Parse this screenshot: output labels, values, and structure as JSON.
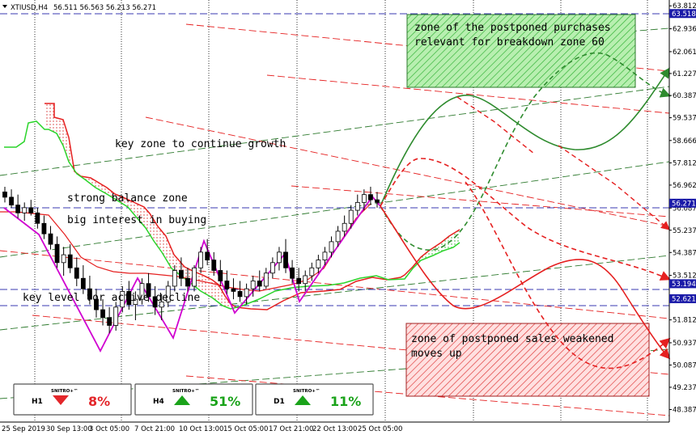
{
  "header": {
    "symbol": "XTIUSD,H4",
    "ohlc": "56.511 56.563 56.213 56.271"
  },
  "chart_data": {
    "type": "candlestick",
    "ylim": [
      48.0,
      63.85
    ],
    "price_ticks": [
      63.812,
      62.936,
      62.061,
      61.227,
      60.387,
      59.537,
      58.666,
      57.812,
      56.962,
      56.087,
      55.237,
      54.387,
      53.512,
      52.662,
      51.812,
      50.937,
      50.087,
      49.237,
      48.387
    ],
    "x_labels": [
      "25 Sep 2019",
      "30 Sep 13:00",
      "3 Oct 05:00",
      "7 Oct 21:00",
      "10 Oct 13:00",
      "15 Oct 05:00",
      "17 Oct 21:00",
      "22 Oct 13:00",
      "25 Oct 05:00"
    ],
    "price_tags": [
      {
        "value": 63.518,
        "label": "63.518",
        "color": "#1a1aa8"
      },
      {
        "value": 56.271,
        "label": "56.271",
        "color": "#1a1aa8"
      },
      {
        "value": 53.194,
        "label": "53.194",
        "color": "#1a1aa8"
      },
      {
        "value": 52.621,
        "label": "52.621",
        "color": "#1a1aa8"
      }
    ],
    "candles": [
      [
        56.7,
        56.9,
        56.3,
        56.5
      ],
      [
        56.5,
        56.8,
        56.1,
        56.2
      ],
      [
        56.2,
        56.6,
        55.7,
        55.9
      ],
      [
        55.9,
        56.3,
        55.6,
        56.1
      ],
      [
        56.1,
        56.4,
        55.8,
        55.9
      ],
      [
        55.9,
        56.1,
        55.3,
        55.5
      ],
      [
        55.5,
        55.8,
        54.9,
        55.1
      ],
      [
        55.1,
        55.4,
        54.5,
        54.7
      ],
      [
        54.7,
        55.0,
        53.8,
        54.0
      ],
      [
        54.0,
        54.6,
        53.5,
        54.3
      ],
      [
        54.3,
        54.7,
        53.6,
        53.8
      ],
      [
        53.8,
        54.2,
        53.1,
        53.4
      ],
      [
        53.4,
        53.9,
        52.8,
        53.0
      ],
      [
        53.0,
        53.5,
        52.4,
        52.6
      ],
      [
        52.6,
        53.0,
        51.9,
        52.2
      ],
      [
        52.2,
        52.6,
        51.6,
        51.9
      ],
      [
        51.9,
        52.3,
        51.3,
        51.6
      ],
      [
        51.6,
        52.5,
        51.4,
        52.3
      ],
      [
        52.3,
        53.1,
        52.1,
        52.9
      ],
      [
        52.9,
        53.3,
        52.2,
        52.4
      ],
      [
        52.4,
        52.9,
        51.8,
        52.6
      ],
      [
        52.6,
        53.4,
        52.4,
        53.2
      ],
      [
        53.2,
        53.6,
        52.5,
        52.7
      ],
      [
        52.7,
        53.1,
        52.0,
        52.3
      ],
      [
        52.3,
        52.8,
        51.8,
        52.5
      ],
      [
        52.5,
        53.3,
        52.3,
        53.1
      ],
      [
        53.1,
        53.9,
        52.9,
        53.7
      ],
      [
        53.7,
        54.2,
        53.1,
        53.4
      ],
      [
        53.4,
        53.8,
        52.9,
        53.1
      ],
      [
        53.1,
        53.9,
        52.9,
        53.8
      ],
      [
        53.8,
        54.6,
        53.6,
        54.4
      ],
      [
        54.4,
        54.9,
        53.9,
        54.1
      ],
      [
        54.1,
        54.4,
        53.5,
        53.7
      ],
      [
        53.7,
        54.1,
        53.1,
        53.3
      ],
      [
        53.3,
        53.7,
        52.8,
        53.0
      ],
      [
        53.0,
        53.4,
        52.6,
        52.9
      ],
      [
        52.9,
        53.3,
        52.5,
        52.7
      ],
      [
        52.7,
        53.2,
        52.4,
        53.0
      ],
      [
        53.0,
        53.5,
        52.7,
        53.3
      ],
      [
        53.3,
        53.7,
        52.9,
        53.1
      ],
      [
        53.1,
        53.8,
        53.0,
        53.6
      ],
      [
        53.6,
        54.2,
        53.4,
        54.0
      ],
      [
        54.0,
        54.6,
        53.7,
        54.4
      ],
      [
        54.4,
        54.9,
        53.6,
        53.8
      ],
      [
        53.8,
        54.1,
        53.2,
        53.4
      ],
      [
        53.4,
        53.8,
        52.9,
        53.2
      ],
      [
        53.2,
        53.7,
        52.9,
        53.5
      ],
      [
        53.5,
        54.0,
        53.3,
        53.8
      ],
      [
        53.8,
        54.3,
        53.6,
        54.1
      ],
      [
        54.1,
        54.6,
        53.9,
        54.4
      ],
      [
        54.4,
        55.0,
        54.2,
        54.8
      ],
      [
        54.8,
        55.4,
        54.6,
        55.2
      ],
      [
        55.2,
        55.8,
        55.0,
        55.5
      ],
      [
        55.5,
        56.2,
        55.3,
        56.0
      ],
      [
        56.0,
        56.6,
        55.8,
        56.3
      ],
      [
        56.3,
        56.8,
        56.0,
        56.6
      ],
      [
        56.6,
        56.9,
        56.2,
        56.4
      ],
      [
        56.4,
        56.7,
        56.1,
        56.3
      ]
    ]
  },
  "annotations": {
    "key_growth": "key zone to continue growth",
    "balance": "strong balance zone",
    "interest": "big interest in buying",
    "decline": "key level for active decline",
    "buy_zone_1": "zone of the postponed purchases",
    "buy_zone_2": "relevant for breakdown zone 60",
    "sell_zone_1": "zone of postponed sales weakened",
    "sell_zone_2": "moves up"
  },
  "badges": [
    {
      "tf": "H1",
      "name": "SNITRO+™",
      "pct": "8%",
      "direction": "down",
      "color": "#e3262a"
    },
    {
      "tf": "H4",
      "name": "SNITRO+™",
      "pct": "51%",
      "direction": "up",
      "color": "#1aa31a"
    },
    {
      "tf": "D1",
      "name": "SNITRO+™",
      "pct": "11%",
      "direction": "up",
      "color": "#1aa31a"
    }
  ]
}
